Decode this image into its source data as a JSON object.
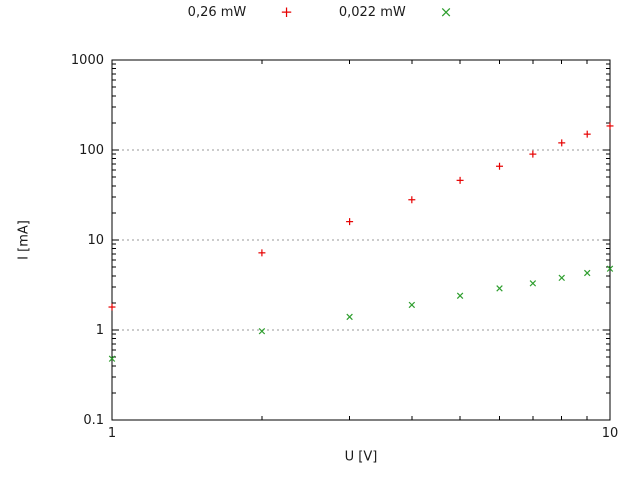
{
  "chart_data": {
    "type": "scatter",
    "title": "",
    "xlabel": "U [V]",
    "ylabel": "I [mA]",
    "x_scale": "log",
    "y_scale": "log",
    "xlim": [
      1,
      10
    ],
    "ylim": [
      0.1,
      1000
    ],
    "x_ticks": {
      "values": [
        1,
        10
      ],
      "labels": [
        "1",
        "10"
      ]
    },
    "y_ticks": {
      "values": [
        0.1,
        1,
        10,
        100,
        1000
      ],
      "labels": [
        "0.1",
        "1",
        "10",
        "100",
        "1000"
      ]
    },
    "grid": {
      "y_values": [
        1,
        10,
        100
      ],
      "style": "dashed",
      "color": "#9a9a9a"
    },
    "legend_position": "top-center-outside",
    "border_color": "#000000",
    "series": [
      {
        "name": "0,26 mW",
        "marker": "plus",
        "color": "#e60000",
        "x": [
          1,
          2,
          3,
          4,
          5,
          6,
          7,
          8,
          9,
          10
        ],
        "y": [
          1.8,
          7.2,
          16,
          28,
          46,
          66,
          90,
          120,
          150,
          185
        ]
      },
      {
        "name": "0,022 mW",
        "marker": "cross",
        "color": "#2e9e2e",
        "x": [
          1,
          2,
          3,
          4,
          5,
          6,
          7,
          8,
          9,
          10
        ],
        "y": [
          0.48,
          0.97,
          1.4,
          1.9,
          2.4,
          2.9,
          3.3,
          3.8,
          4.3,
          4.8
        ]
      }
    ]
  }
}
